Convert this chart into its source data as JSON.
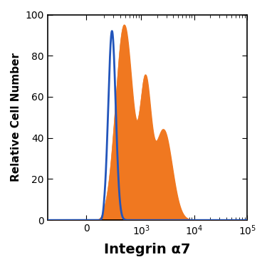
{
  "title": "",
  "xlabel": "Integrin α7",
  "ylabel": "Relative Cell Number",
  "xlabel_fontsize": 14,
  "ylabel_fontsize": 11,
  "xlabel_fontweight": "bold",
  "ylabel_fontweight": "bold",
  "ylim": [
    0,
    100
  ],
  "background_color": "#ffffff",
  "blue_color": "#2255bb",
  "orange_color": "#f07820",
  "blue_peak_log": 2.45,
  "blue_peak_height": 92,
  "blue_sigma_log": 0.07,
  "orange_peak1_log": 2.68,
  "orange_peak1_height": 95,
  "orange_peak1_sigma_log": 0.16,
  "orange_peak2_log": 3.08,
  "orange_peak2_height": 62,
  "orange_peak2_sigma_log": 0.1,
  "orange_shoulder_log": 3.42,
  "orange_shoulder_height": 44,
  "orange_shoulder_sigma_log": 0.16,
  "linthresh": 200,
  "linscale": 0.3,
  "xlim_left": -500,
  "xlim_right": 100000,
  "yticks": [
    0,
    20,
    40,
    60,
    80,
    100
  ]
}
